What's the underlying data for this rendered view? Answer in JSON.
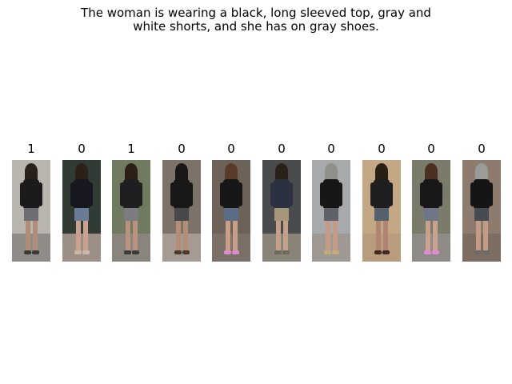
{
  "caption": {
    "line1": "The woman is wearing a black, long sleeved top, gray and",
    "line2": "white shorts, and she has on gray shoes."
  },
  "gallery": {
    "items": [
      {
        "label": "1",
        "bg": "#b9b5ae",
        "ground": "#8f8c87",
        "top": "#1c1b1c",
        "bottom": "#6d6e73",
        "legs": "#b08d7b",
        "shoes": "#3a3a3a",
        "hair": "#2a211b"
      },
      {
        "label": "0",
        "bg": "#2f3b33",
        "ground": "#9c8f86",
        "top": "#16171f",
        "bottom": "#6a7b95",
        "legs": "#c9a18e",
        "shoes": "#c8b8a8",
        "hair": "#2b2118"
      },
      {
        "label": "1",
        "bg": "#6f7a61",
        "ground": "#8a857c",
        "top": "#1f1f22",
        "bottom": "#7c7c80",
        "legs": "#b99380",
        "shoes": "#3b3b3b",
        "hair": "#2b2018"
      },
      {
        "label": "0",
        "bg": "#7c7268",
        "ground": "#a69b92",
        "top": "#181818",
        "bottom": "#48484c",
        "legs": "#b48d77",
        "shoes": "#4a3b2e",
        "hair": "#1b1716"
      },
      {
        "label": "0",
        "bg": "#6c6257",
        "ground": "#7a7067",
        "top": "#161616",
        "bottom": "#5b6d86",
        "legs": "#c99d87",
        "shoes": "#d98cc9",
        "hair": "#5a3a28"
      },
      {
        "label": "0",
        "bg": "#4a4b4c",
        "ground": "#8a8478",
        "top": "#2b3141",
        "bottom": "#a5957a",
        "legs": "#c4a08b",
        "shoes": "#6b6b5d",
        "hair": "#2a211b"
      },
      {
        "label": "0",
        "bg": "#a7a9aa",
        "ground": "#9e9a93",
        "top": "#171717",
        "bottom": "#5e6168",
        "legs": "#c49b84",
        "shoes": "#c2ac7e",
        "hair": "#8f9089"
      },
      {
        "label": "0",
        "bg": "#c4a886",
        "ground": "#b99c7e",
        "top": "#1f1f22",
        "bottom": "#55606d",
        "legs": "#b08570",
        "shoes": "#3b2a20",
        "hair": "#2a1f17"
      },
      {
        "label": "0",
        "bg": "#7a7b6b",
        "ground": "#8e8b86",
        "top": "#181818",
        "bottom": "#6f7687",
        "legs": "#c9a28e",
        "shoes": "#e08ad7",
        "hair": "#4b3022"
      },
      {
        "label": "0",
        "bg": "#8d7c6e",
        "ground": "#7d6d61",
        "top": "#151515",
        "bottom": "#464a52",
        "legs": "#c29c86",
        "shoes": "#6a6a6a",
        "hair": "#9a9c9a"
      }
    ]
  }
}
